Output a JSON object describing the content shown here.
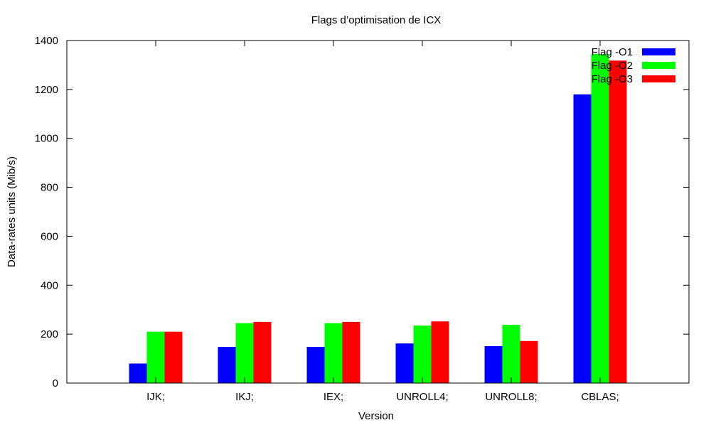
{
  "chart_data": {
    "type": "bar",
    "title": "Flags d’optimisation de ICX",
    "xlabel": "Version",
    "ylabel": "Data-rates units (Mib/s)",
    "categories": [
      "IJK;",
      "IKJ;",
      "IEX;",
      "UNROLL4;",
      "UNROLL8;",
      "CBLAS;"
    ],
    "ylim": [
      0,
      1400
    ],
    "yticks": [
      0,
      200,
      400,
      600,
      800,
      1000,
      1200,
      1400
    ],
    "grid": false,
    "legend_position": "top-right",
    "series": [
      {
        "name": "Flag -O1",
        "color": "#0000ff",
        "values": [
          80,
          148,
          148,
          162,
          151,
          1180
        ]
      },
      {
        "name": "Flag -O2",
        "color": "#00ff00",
        "values": [
          210,
          245,
          245,
          235,
          238,
          1345
        ]
      },
      {
        "name": "Flag -O3",
        "color": "#ff0000",
        "values": [
          210,
          250,
          250,
          252,
          172,
          1318
        ]
      }
    ]
  }
}
